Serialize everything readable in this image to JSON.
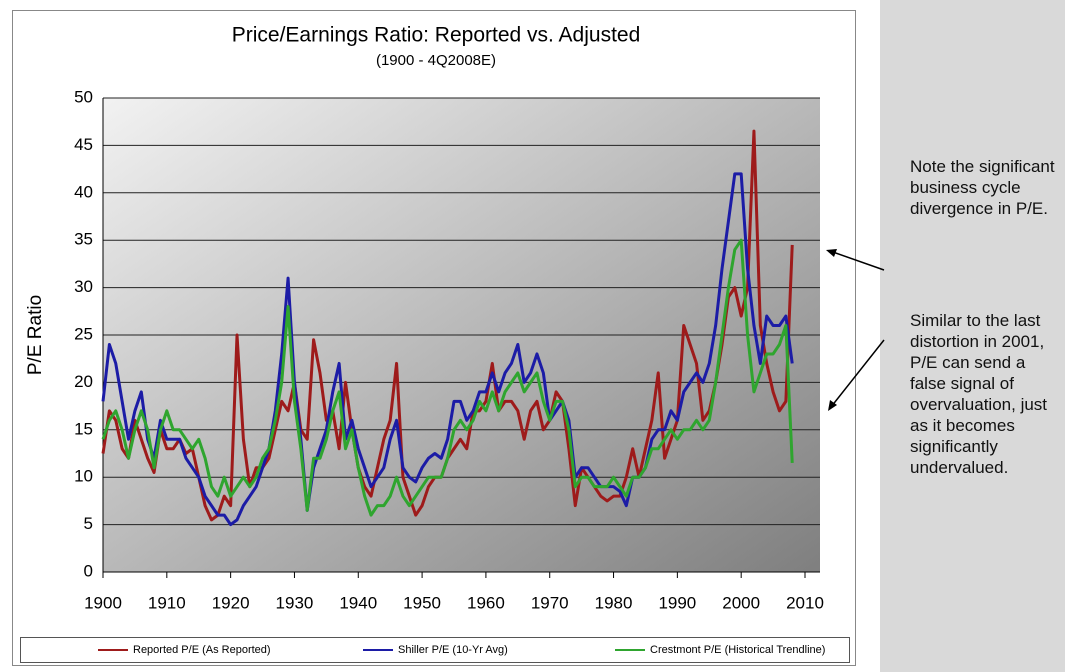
{
  "chart_data": {
    "type": "line",
    "title": "Price/Earnings Ratio: Reported vs. Adjusted",
    "subtitle": "(1900 - 4Q2008E)",
    "y_label": "P/E Ratio",
    "x": [
      1900,
      1901,
      1902,
      1903,
      1904,
      1905,
      1906,
      1907,
      1908,
      1909,
      1910,
      1911,
      1912,
      1913,
      1914,
      1915,
      1916,
      1917,
      1918,
      1919,
      1920,
      1921,
      1922,
      1923,
      1924,
      1925,
      1926,
      1927,
      1928,
      1929,
      1930,
      1931,
      1932,
      1933,
      1934,
      1935,
      1936,
      1937,
      1938,
      1939,
      1940,
      1941,
      1942,
      1943,
      1944,
      1945,
      1946,
      1947,
      1948,
      1949,
      1950,
      1951,
      1952,
      1953,
      1954,
      1955,
      1956,
      1957,
      1958,
      1959,
      1960,
      1961,
      1962,
      1963,
      1964,
      1965,
      1966,
      1967,
      1968,
      1969,
      1970,
      1971,
      1972,
      1973,
      1974,
      1975,
      1976,
      1977,
      1978,
      1979,
      1980,
      1981,
      1982,
      1983,
      1984,
      1985,
      1986,
      1987,
      1988,
      1989,
      1990,
      1991,
      1992,
      1993,
      1994,
      1995,
      1996,
      1997,
      1998,
      1999,
      2000,
      2001,
      2002,
      2003,
      2004,
      2005,
      2006,
      2007,
      2008
    ],
    "series": [
      {
        "name": "Reported P/E (As Reported)",
        "color": "#9e1b1b",
        "values": [
          12.5,
          17,
          16,
          13,
          12,
          16,
          14,
          12,
          10.5,
          15,
          13,
          13,
          14,
          12.5,
          13,
          10,
          7,
          5.5,
          6,
          8,
          7,
          25,
          14,
          9,
          11,
          11,
          12,
          15,
          18,
          17,
          20,
          15,
          14,
          24.5,
          21,
          16,
          17,
          13,
          20,
          15,
          11,
          9,
          8,
          11,
          14,
          16,
          22,
          10,
          8,
          6,
          7,
          9,
          10,
          10,
          12,
          13,
          14,
          13,
          17,
          17,
          18,
          22,
          17,
          18,
          18,
          17,
          14,
          17,
          18,
          15,
          16,
          19,
          18,
          13,
          7,
          11,
          10,
          9,
          8,
          7.5,
          8,
          8,
          10,
          13,
          10,
          13,
          16,
          21,
          12,
          14,
          16,
          26,
          24,
          22,
          16,
          17,
          20,
          24,
          29,
          30,
          27,
          30,
          46.5,
          26,
          22,
          19,
          17,
          18,
          34.5
        ]
      },
      {
        "name": "Shiller P/E (10-Yr Avg)",
        "color": "#1c1ca6",
        "values": [
          18,
          24,
          22,
          18,
          14,
          17,
          19,
          14,
          12,
          16,
          14,
          14,
          14,
          12,
          11,
          10,
          8,
          7,
          6,
          6,
          5,
          5.5,
          7,
          8,
          9,
          11,
          13,
          17,
          23,
          31,
          20,
          14,
          6.5,
          11,
          13,
          15,
          19,
          22,
          14,
          16,
          13,
          11,
          9,
          10,
          11,
          14,
          16,
          11,
          10,
          9.5,
          11,
          12,
          12.5,
          12,
          14,
          18,
          18,
          16,
          17,
          19,
          19,
          21,
          19,
          21,
          22,
          24,
          20,
          21,
          23,
          21,
          16,
          17,
          18,
          16,
          10,
          11,
          11,
          10,
          9,
          9,
          9,
          8.5,
          7,
          10,
          10,
          11,
          14,
          15,
          15,
          17,
          16,
          19,
          20,
          21,
          20,
          22,
          26,
          32,
          37,
          42,
          42,
          32,
          26,
          22,
          27,
          26,
          26,
          27,
          22
        ]
      },
      {
        "name": "Crestmont P/E (Historical Trendline)",
        "color": "#2fa52f",
        "values": [
          14,
          16,
          17,
          15,
          12,
          15,
          17,
          15,
          11,
          15,
          17,
          15,
          15,
          14,
          13,
          14,
          12,
          9,
          8,
          10,
          8,
          9,
          10,
          9,
          10,
          12,
          13,
          16,
          20,
          28,
          18,
          13,
          6.5,
          12,
          12,
          14,
          17,
          19,
          13,
          15,
          11,
          8,
          6,
          7,
          7,
          8,
          10,
          8,
          7,
          8,
          9,
          10,
          10,
          10,
          12,
          15,
          16,
          15,
          16,
          18,
          17,
          19,
          17,
          19,
          20,
          21,
          19,
          20,
          21,
          18,
          16,
          18,
          18,
          15,
          9,
          10,
          10,
          9,
          9,
          9,
          10,
          9,
          8,
          10,
          10,
          11,
          13,
          13,
          14,
          15,
          14,
          15,
          15,
          16,
          15,
          16,
          20,
          25,
          30,
          34,
          35,
          25,
          19,
          21,
          23,
          23,
          24,
          26,
          11.5
        ]
      }
    ],
    "xlim": [
      1900,
      2010
    ],
    "xticks": [
      1900,
      1910,
      1920,
      1930,
      1940,
      1950,
      1960,
      1970,
      1980,
      1990,
      2000,
      2010
    ],
    "ylim": [
      0,
      50
    ],
    "yticks": [
      0,
      5,
      10,
      15,
      20,
      25,
      30,
      35,
      40,
      45,
      50
    ],
    "grid": true,
    "legend": "bottom"
  },
  "notes": [
    "Note the significant business cycle divergence in P/E.",
    "Similar to the last distortion in 2001, P/E can send a false signal of overvaluation, just as it becomes significantly undervalued."
  ]
}
